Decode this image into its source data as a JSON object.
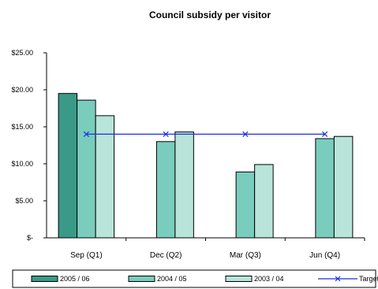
{
  "chart_data": {
    "type": "bar",
    "title": "Council subsidy per visitor",
    "xlabel": "",
    "ylabel": "",
    "categories": [
      "Sep (Q1)",
      "Dec (Q2)",
      "Mar (Q3)",
      "Jun (Q4)"
    ],
    "ylim": [
      0,
      25
    ],
    "y_ticks": [
      0,
      5,
      10,
      15,
      20,
      25
    ],
    "y_tick_labels": [
      "$-",
      "$5.00",
      "$10.00",
      "$15.00",
      "$20.00",
      "$25.00"
    ],
    "grid": false,
    "legend_position": "bottom",
    "series": [
      {
        "name": "2005 / 06",
        "kind": "bar",
        "color": "#3a9a88",
        "values": [
          19.5,
          null,
          null,
          null
        ]
      },
      {
        "name": "2004 / 05",
        "kind": "bar",
        "color": "#7accbd",
        "values": [
          18.6,
          13.0,
          8.9,
          13.4
        ]
      },
      {
        "name": "2003 / 04",
        "kind": "bar",
        "color": "#b8e4d9",
        "values": [
          16.5,
          14.3,
          9.9,
          13.7
        ]
      },
      {
        "name": "Target",
        "kind": "line",
        "color": "#1c2ee0",
        "values": [
          14.0,
          14.0,
          14.0,
          14.0
        ]
      }
    ]
  }
}
